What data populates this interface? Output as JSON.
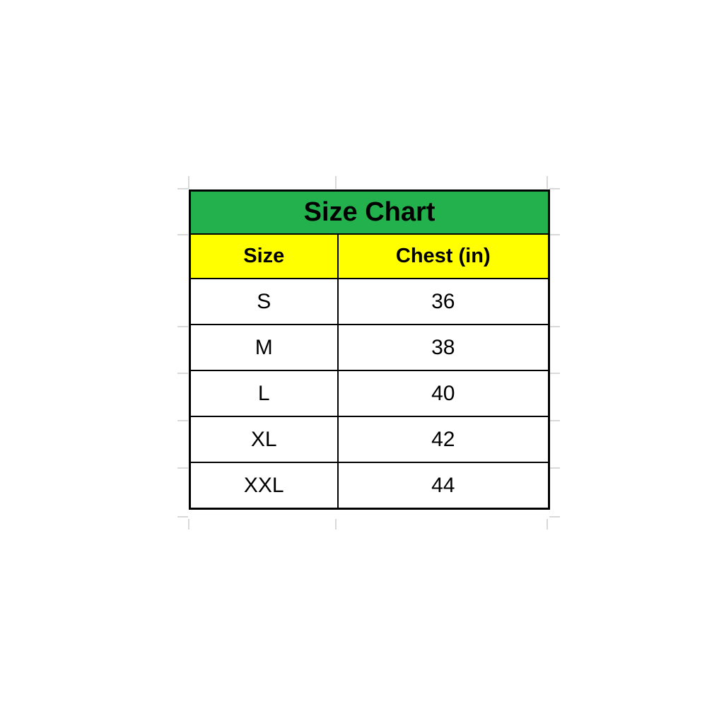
{
  "table": {
    "title": "Size Chart",
    "columns": [
      "Size",
      "Chest (in)"
    ],
    "rows": [
      {
        "size": "S",
        "chest": "36"
      },
      {
        "size": "M",
        "chest": "38"
      },
      {
        "size": "L",
        "chest": "40"
      },
      {
        "size": "XL",
        "chest": "42"
      },
      {
        "size": "XXL",
        "chest": "44"
      }
    ]
  },
  "colors": {
    "title_bg": "#22B14C",
    "header_bg": "#FFFF00",
    "border": "#000000",
    "gridline": "#D9D9D9",
    "text": "#000000"
  },
  "chart_data": {
    "type": "table",
    "title": "Size Chart",
    "columns": [
      "Size",
      "Chest (in)"
    ],
    "rows": [
      [
        "S",
        36
      ],
      [
        "M",
        38
      ],
      [
        "L",
        40
      ],
      [
        "XL",
        42
      ],
      [
        "XXL",
        44
      ]
    ]
  }
}
